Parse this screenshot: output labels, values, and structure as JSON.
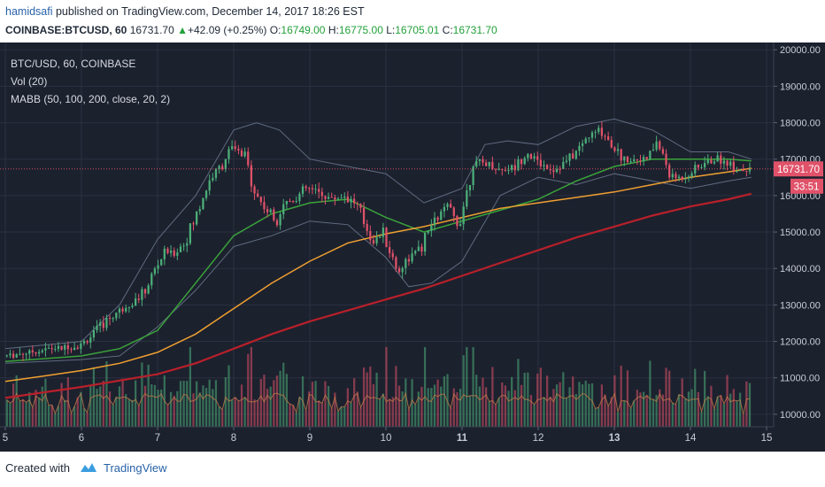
{
  "header": {
    "author": "hamidsafi",
    "published_text": "published on TradingView.com, December 14, 2017 18:26 EST",
    "symbol": "COINBASE:BTCUSD, 60",
    "last": "16731.70",
    "change_arrow": "▲",
    "change": "+42.09 (+0.25%)",
    "o_label": "O:",
    "o": "16749.00",
    "h_label": "H:",
    "h": "16775.00",
    "l_label": "L:",
    "l": "16705.01",
    "c_label": "C:",
    "c": "16731.70"
  },
  "legend": {
    "line1": "BTC/USD, 60, COINBASE",
    "line2": "Vol (20)",
    "line3": "MABB (50, 100, 200, close, 20, 2)"
  },
  "price_badge": "16731.70",
  "timer_badge": "33:51",
  "footer": {
    "created": "Created with",
    "brand": "TradingView"
  },
  "colors": {
    "background": "#1c212e",
    "grid": "#2a3140",
    "axis_text": "#c8ccd6",
    "bull": "#4caf7a",
    "bear": "#e05269",
    "ma50": "#3aa33a",
    "ma100": "#f0a030",
    "ma200": "#b8202a",
    "bb": "#6f7e94",
    "price_line": "#e05269",
    "vol_ma": "#c27a4a"
  },
  "icons": {
    "logo": "tradingview-cloud-icon",
    "up_arrow": "up-triangle-icon"
  },
  "chart_data": {
    "type": "candlestick",
    "x_axis": {
      "ticks": [
        "5",
        "6",
        "7",
        "8",
        "9",
        "10",
        "11",
        "12",
        "13",
        "14",
        "15"
      ],
      "range": [
        5.0,
        15.0
      ]
    },
    "y_axis": {
      "ticks": [
        "10000.00",
        "11000.00",
        "12000.00",
        "13000.00",
        "14000.00",
        "15000.00",
        "16000.00",
        "17000.00",
        "18000.00",
        "19000.00",
        "20000.00"
      ],
      "range": [
        9900,
        20200
      ]
    },
    "last_price": 16731.7,
    "close_path": [
      [
        5.0,
        11600
      ],
      [
        5.3,
        11700
      ],
      [
        5.6,
        11800
      ],
      [
        5.9,
        11850
      ],
      [
        6.0,
        11900
      ],
      [
        6.2,
        12300
      ],
      [
        6.4,
        12700
      ],
      [
        6.6,
        13000
      ],
      [
        6.8,
        13250
      ],
      [
        7.0,
        14100
      ],
      [
        7.1,
        14500
      ],
      [
        7.2,
        14400
      ],
      [
        7.35,
        14700
      ],
      [
        7.5,
        15400
      ],
      [
        7.6,
        16000
      ],
      [
        7.7,
        16500
      ],
      [
        7.8,
        16700
      ],
      [
        7.95,
        17300
      ],
      [
        8.05,
        17200
      ],
      [
        8.15,
        17000
      ],
      [
        8.3,
        16000
      ],
      [
        8.4,
        15700
      ],
      [
        8.55,
        15300
      ],
      [
        8.65,
        15800
      ],
      [
        8.8,
        15900
      ],
      [
        8.95,
        16200
      ],
      [
        9.1,
        16100
      ],
      [
        9.3,
        15900
      ],
      [
        9.45,
        16000
      ],
      [
        9.6,
        15800
      ],
      [
        9.75,
        15100
      ],
      [
        9.85,
        14700
      ],
      [
        9.95,
        15000
      ],
      [
        10.05,
        14500
      ],
      [
        10.15,
        13900
      ],
      [
        10.3,
        14300
      ],
      [
        10.45,
        14500
      ],
      [
        10.6,
        15200
      ],
      [
        10.8,
        15700
      ],
      [
        10.95,
        15200
      ],
      [
        11.05,
        16000
      ],
      [
        11.15,
        16900
      ],
      [
        11.3,
        16900
      ],
      [
        11.5,
        16700
      ],
      [
        11.7,
        16800
      ],
      [
        11.85,
        17200
      ],
      [
        12.0,
        16900
      ],
      [
        12.2,
        16700
      ],
      [
        12.35,
        16900
      ],
      [
        12.5,
        17200
      ],
      [
        12.65,
        17600
      ],
      [
        12.8,
        17800
      ],
      [
        12.95,
        17500
      ],
      [
        13.1,
        17000
      ],
      [
        13.3,
        17000
      ],
      [
        13.45,
        17000
      ],
      [
        13.55,
        17500
      ],
      [
        13.65,
        17000
      ],
      [
        13.75,
        16500
      ],
      [
        13.9,
        16500
      ],
      [
        14.05,
        16700
      ],
      [
        14.2,
        16900
      ],
      [
        14.35,
        17000
      ],
      [
        14.5,
        16900
      ],
      [
        14.65,
        16700
      ],
      [
        14.8,
        16731.7
      ]
    ],
    "series": [
      {
        "name": "MA50",
        "color": "#3aa33a",
        "points": [
          [
            5.0,
            11450
          ],
          [
            6.0,
            11600
          ],
          [
            6.5,
            11800
          ],
          [
            7.0,
            12300
          ],
          [
            7.5,
            13600
          ],
          [
            8.0,
            14900
          ],
          [
            8.5,
            15500
          ],
          [
            9.0,
            15800
          ],
          [
            9.5,
            15900
          ],
          [
            10.0,
            15400
          ],
          [
            10.5,
            15000
          ],
          [
            11.0,
            15300
          ],
          [
            11.5,
            15600
          ],
          [
            12.0,
            15900
          ],
          [
            12.5,
            16400
          ],
          [
            13.0,
            16800
          ],
          [
            13.5,
            17000
          ],
          [
            14.0,
            17000
          ],
          [
            14.5,
            17000
          ],
          [
            14.8,
            16950
          ]
        ]
      },
      {
        "name": "MA100",
        "color": "#f0a030",
        "points": [
          [
            5.0,
            10900
          ],
          [
            5.5,
            11050
          ],
          [
            6.0,
            11200
          ],
          [
            6.5,
            11400
          ],
          [
            7.0,
            11700
          ],
          [
            7.5,
            12200
          ],
          [
            8.0,
            12900
          ],
          [
            8.5,
            13600
          ],
          [
            9.0,
            14200
          ],
          [
            9.5,
            14700
          ],
          [
            10.0,
            14950
          ],
          [
            10.5,
            15150
          ],
          [
            11.0,
            15400
          ],
          [
            11.5,
            15650
          ],
          [
            12.0,
            15800
          ],
          [
            12.5,
            15950
          ],
          [
            13.0,
            16100
          ],
          [
            13.5,
            16300
          ],
          [
            14.0,
            16500
          ],
          [
            14.5,
            16650
          ],
          [
            14.8,
            16750
          ]
        ]
      },
      {
        "name": "MA200",
        "color": "#b8202a",
        "points": [
          [
            5.0,
            10450
          ],
          [
            6.0,
            10750
          ],
          [
            7.0,
            11100
          ],
          [
            7.5,
            11400
          ],
          [
            8.0,
            11800
          ],
          [
            8.5,
            12200
          ],
          [
            9.0,
            12550
          ],
          [
            9.5,
            12850
          ],
          [
            10.0,
            13150
          ],
          [
            10.5,
            13450
          ],
          [
            11.0,
            13800
          ],
          [
            11.5,
            14150
          ],
          [
            12.0,
            14500
          ],
          [
            12.5,
            14850
          ],
          [
            13.0,
            15150
          ],
          [
            13.5,
            15450
          ],
          [
            14.0,
            15700
          ],
          [
            14.5,
            15900
          ],
          [
            14.8,
            16050
          ]
        ]
      }
    ],
    "bollinger": {
      "upper": [
        [
          5.0,
          11800
        ],
        [
          6.0,
          12000
        ],
        [
          6.5,
          13000
        ],
        [
          7.0,
          14800
        ],
        [
          7.5,
          16000
        ],
        [
          8.0,
          17800
        ],
        [
          8.3,
          18000
        ],
        [
          8.6,
          17800
        ],
        [
          9.0,
          17000
        ],
        [
          9.5,
          16800
        ],
        [
          10.0,
          16600
        ],
        [
          10.5,
          15800
        ],
        [
          11.0,
          16200
        ],
        [
          11.3,
          17400
        ],
        [
          11.6,
          17500
        ],
        [
          12.0,
          17400
        ],
        [
          12.5,
          17900
        ],
        [
          13.0,
          18100
        ],
        [
          13.5,
          17800
        ],
        [
          14.0,
          17200
        ],
        [
          14.5,
          17200
        ],
        [
          14.8,
          17000
        ]
      ],
      "lower": [
        [
          5.0,
          11400
        ],
        [
          6.0,
          11500
        ],
        [
          6.5,
          11600
        ],
        [
          7.0,
          12400
        ],
        [
          7.5,
          13400
        ],
        [
          8.0,
          14600
        ],
        [
          8.5,
          14900
        ],
        [
          9.0,
          15300
        ],
        [
          9.5,
          15200
        ],
        [
          10.0,
          14300
        ],
        [
          10.3,
          13500
        ],
        [
          10.6,
          13600
        ],
        [
          11.0,
          14200
        ],
        [
          11.5,
          16000
        ],
        [
          12.0,
          16500
        ],
        [
          12.5,
          16300
        ],
        [
          13.0,
          16600
        ],
        [
          13.5,
          16400
        ],
        [
          14.0,
          16200
        ],
        [
          14.5,
          16400
        ],
        [
          14.8,
          16500
        ]
      ]
    },
    "volume": {
      "label": "Vol (20)",
      "scale": "relative 0-1",
      "peak": 1.0
    }
  }
}
